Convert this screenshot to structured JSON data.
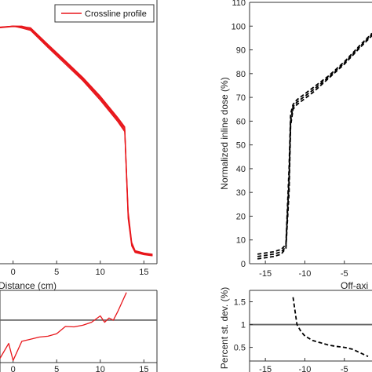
{
  "chart_data": [
    {
      "id": "left-main",
      "type": "line",
      "xlabel": "Distance (cm)",
      "xlim": [
        -1.5,
        16.5
      ],
      "ylim": [
        0,
        110
      ],
      "xticks": [
        0,
        5,
        10,
        15
      ],
      "color": "#e8161b",
      "legend": {
        "label": "Crossline profile",
        "position": "top-right"
      },
      "series": [
        {
          "x": [
            -1.5,
            0,
            1,
            2,
            4,
            6,
            8,
            10,
            12,
            12.8,
            13.2,
            13.6,
            14,
            15,
            16
          ],
          "y": [
            99.5,
            100,
            100,
            99,
            92,
            85,
            78,
            70,
            61,
            57,
            20,
            8,
            5,
            4,
            3.5
          ]
        },
        {
          "x": [
            -1.5,
            0,
            1,
            2,
            4,
            6,
            8,
            10,
            12,
            12.8,
            13.2,
            13.6,
            14,
            15,
            16
          ],
          "y": [
            99.3,
            99.8,
            99.6,
            98.6,
            91.5,
            84.6,
            77.5,
            69.4,
            60.4,
            56.3,
            19,
            7.5,
            4.7,
            3.8,
            3.3
          ]
        },
        {
          "x": [
            -1.5,
            0,
            1,
            2,
            4,
            6,
            8,
            10,
            12,
            12.8,
            13.2,
            13.6,
            14,
            15,
            16
          ],
          "y": [
            99.6,
            100,
            99.2,
            98.2,
            91,
            84,
            77,
            68.8,
            59.8,
            55.6,
            21,
            8.5,
            5.2,
            4.3,
            3.8
          ]
        },
        {
          "x": [
            -1.5,
            0,
            1,
            2,
            4,
            6,
            8,
            10,
            12,
            12.8,
            13.2,
            13.6,
            14,
            15,
            16
          ],
          "y": [
            99.4,
            100,
            99.8,
            99.3,
            92.3,
            85.4,
            78.4,
            70.5,
            61.5,
            57.6,
            22,
            9,
            5.5,
            4.5,
            4
          ]
        }
      ]
    },
    {
      "id": "left-bottom",
      "type": "line",
      "xlim": [
        -1.5,
        16.5
      ],
      "ylim": [
        0,
        1.7
      ],
      "xticks": [
        0,
        5,
        10,
        15
      ],
      "reference_y": 1,
      "color": "#e8161b",
      "series": [
        {
          "x": [
            -1.5,
            -0.5,
            0,
            1,
            2,
            3,
            4,
            5,
            6,
            7,
            8,
            9,
            10,
            10.5,
            11,
            11.5,
            12,
            13
          ],
          "y": [
            0.1,
            0.45,
            0.05,
            0.5,
            0.55,
            0.6,
            0.62,
            0.68,
            0.85,
            0.84,
            0.88,
            0.95,
            1.1,
            0.95,
            1.05,
            1.0,
            1.2,
            1.65
          ]
        }
      ]
    },
    {
      "id": "right-main",
      "type": "line",
      "ylabel": "Normalized inline dose (%)",
      "xlabel": "Off-axi",
      "xlim": [
        -17,
        -1.5
      ],
      "ylim": [
        0,
        110
      ],
      "xticks": [
        -15,
        -10,
        -5
      ],
      "yticks": [
        0,
        10,
        20,
        30,
        40,
        50,
        60,
        70,
        80,
        90,
        100,
        110
      ],
      "color": "#000000",
      "series": [
        {
          "x": [
            -16,
            -15,
            -14,
            -13,
            -12.4,
            -12,
            -11.8,
            -11.5,
            -11,
            -9,
            -7,
            -5,
            -3,
            -1.5
          ],
          "y": [
            4,
            4.5,
            5,
            6,
            8,
            40,
            63,
            67,
            69,
            74,
            79,
            85,
            92,
            97
          ]
        },
        {
          "x": [
            -16,
            -15,
            -14,
            -13,
            -12.4,
            -12,
            -11.8,
            -11.5,
            -11,
            -9,
            -7,
            -5,
            -3,
            -1.5
          ],
          "y": [
            3,
            3.5,
            4,
            5,
            7,
            35,
            60,
            66,
            68,
            73,
            78.5,
            84.5,
            91.5,
            96.5
          ]
        },
        {
          "x": [
            -16,
            -15,
            -14,
            -13,
            -12.4,
            -12,
            -11.8,
            -11.5,
            -11,
            -9,
            -7,
            -5,
            -3,
            -1.5
          ],
          "y": [
            2,
            2.5,
            3,
            4,
            6.5,
            30,
            58,
            65,
            67,
            72,
            78,
            84,
            91,
            96
          ]
        }
      ]
    },
    {
      "id": "right-bottom",
      "type": "line",
      "ylabel": "Percent st. dev. (%)",
      "xlim": [
        -17,
        -1.5
      ],
      "ylim": [
        0.2,
        1.75
      ],
      "xticks": [
        -15,
        -10,
        -5
      ],
      "yticks": [
        0.5,
        1,
        1.5
      ],
      "ytick_labels": [
        "0.5",
        "1",
        "1.5"
      ],
      "reference_y": 1,
      "color": "#000000",
      "series": [
        {
          "x": [
            -11.5,
            -11,
            -10.5,
            -10,
            -9,
            -8,
            -7,
            -6,
            -5,
            -4,
            -3,
            -2
          ],
          "y": [
            1.6,
            1.0,
            0.85,
            0.75,
            0.65,
            0.6,
            0.55,
            0.52,
            0.5,
            0.46,
            0.38,
            0.3
          ]
        }
      ]
    }
  ]
}
